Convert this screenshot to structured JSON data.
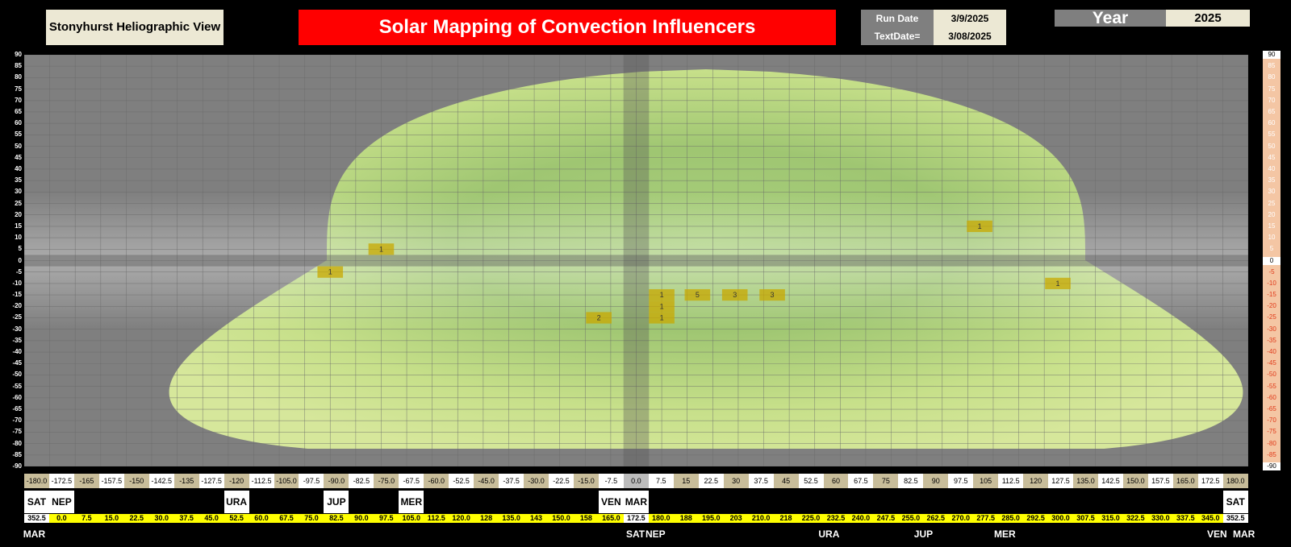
{
  "header": {
    "view_label": "Stonyhurst Heliographic View",
    "title": "Solar Mapping of Convection Influencers",
    "run_date_label": "Run Date",
    "run_date_value": "3/9/2025",
    "text_date_label": "TextDate=",
    "text_date_value": "3/08/2025",
    "year_label": "Year",
    "year_value": "2025"
  },
  "latitude_ticks": [
    "90",
    "85",
    "80",
    "75",
    "70",
    "65",
    "60",
    "55",
    "50",
    "45",
    "40",
    "35",
    "30",
    "25",
    "20",
    "15",
    "10",
    "5",
    "0",
    "-5",
    "-10",
    "-15",
    "-20",
    "-25",
    "-30",
    "-35",
    "-40",
    "-45",
    "-50",
    "-55",
    "-60",
    "-65",
    "-70",
    "-75",
    "-80",
    "-85",
    "-90"
  ],
  "longitude_labels": [
    "-180.0",
    "-172.5",
    "-165",
    "-157.5",
    "-150",
    "-142.5",
    "-135",
    "-127.5",
    "-120",
    "-112.5",
    "-105.0",
    "-97.5",
    "-90.0",
    "-82.5",
    "-75.0",
    "-67.5",
    "-60.0",
    "-52.5",
    "-45.0",
    "-37.5",
    "-30.0",
    "-22.5",
    "-15.0",
    "-7.5",
    "0.0",
    "7.5",
    "15",
    "22.5",
    "30",
    "37.5",
    "45",
    "52.5",
    "60",
    "67.5",
    "75",
    "82.5",
    "90",
    "97.5",
    "105",
    "112.5",
    "120",
    "127.5",
    "135.0",
    "142.5",
    "150.0",
    "157.5",
    "165.0",
    "172.5",
    "180.0"
  ],
  "planet_row": [
    "SAT",
    "NEP",
    "",
    "",
    "",
    "",
    "",
    "",
    "URA",
    "",
    "",
    "",
    "JUP",
    "",
    "",
    "MER",
    "",
    "",
    "",
    "",
    "",
    "",
    "",
    "VEN",
    "MAR",
    "",
    "",
    "",
    "",
    "",
    "",
    "",
    "",
    "",
    "",
    "",
    "",
    "",
    "",
    "",
    "",
    "",
    "",
    "",
    "",
    "",
    "",
    "",
    "SAT"
  ],
  "degree_labels": [
    "352.5",
    "0.0",
    "7.5",
    "15.0",
    "22.5",
    "30.0",
    "37.5",
    "45.0",
    "52.5",
    "60.0",
    "67.5",
    "75.0",
    "82.5",
    "90.0",
    "97.5",
    "105.0",
    "112.5",
    "120.0",
    "128",
    "135.0",
    "143",
    "150.0",
    "158",
    "165.0",
    "172.5",
    "180.0",
    "188",
    "195.0",
    "203",
    "210.0",
    "218",
    "225.0",
    "232.5",
    "240.0",
    "247.5",
    "255.0",
    "262.5",
    "270.0",
    "277.5",
    "285.0",
    "292.5",
    "300.0",
    "307.5",
    "315.0",
    "322.5",
    "330.0",
    "337.5",
    "345.0",
    "352.5"
  ],
  "bottom_labels": [
    {
      "text": "MAR",
      "pos": 0.018
    },
    {
      "text": "SAT",
      "pos": 0.485
    },
    {
      "text": "NEP",
      "pos": 0.5
    },
    {
      "text": "URA",
      "pos": 0.634
    },
    {
      "text": "JUP",
      "pos": 0.708
    },
    {
      "text": "MER",
      "pos": 0.77
    },
    {
      "text": "VEN",
      "pos": 0.935
    },
    {
      "text": "MAR",
      "pos": 0.955
    }
  ],
  "markers": [
    {
      "lon": -75,
      "lat": 5,
      "count": "1"
    },
    {
      "lon": -90,
      "lat": -5,
      "count": "1"
    },
    {
      "lon": -11,
      "lat": -25,
      "count": "2"
    },
    {
      "lon": 7.5,
      "lat": -15,
      "count": "1"
    },
    {
      "lon": 18,
      "lat": -15,
      "count": "5"
    },
    {
      "lon": 29,
      "lat": -15,
      "count": "3"
    },
    {
      "lon": 40,
      "lat": -15,
      "count": "3"
    },
    {
      "lon": 7.5,
      "lat": -20,
      "count": "1"
    },
    {
      "lon": 7.5,
      "lat": -25,
      "count": "1"
    },
    {
      "lon": 101,
      "lat": 15,
      "count": "1"
    },
    {
      "lon": 124,
      "lat": -10,
      "count": "1"
    }
  ],
  "colors": {
    "background": "#000000",
    "map_grey": "#7f7f7f",
    "sun_green": "#b7d77e",
    "title_red": "#ff0000",
    "marker_yellow": "#c8a800",
    "degree_row_yellow": "#ffff00"
  }
}
